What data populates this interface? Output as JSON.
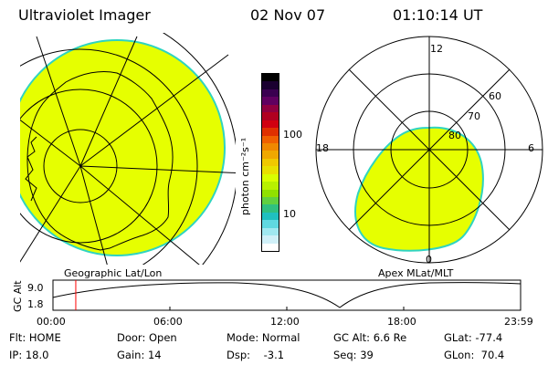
{
  "header": {
    "instrument": "Ultraviolet Imager",
    "date": "02 Nov 07",
    "time": "01:10:14 UT"
  },
  "left_panel": {
    "label": "Geographic Lat/Lon",
    "fill_color": "#e6ff00",
    "limb_color": "#2fd4c0"
  },
  "colorbar": {
    "label": "photon cm⁻²s⁻¹",
    "tick_top": "100",
    "tick_bottom": "10",
    "colors": [
      "#000000",
      "#1a0030",
      "#3a0050",
      "#600060",
      "#900040",
      "#b00020",
      "#d00010",
      "#e03000",
      "#f06000",
      "#f08800",
      "#f0a800",
      "#f0c800",
      "#e8e000",
      "#d8ff00",
      "#b8f000",
      "#90e000",
      "#60d040",
      "#30c080",
      "#20c0c0",
      "#60d8e0",
      "#a0e8f0",
      "#d0f0f8",
      "#ffffff"
    ]
  },
  "right_panel": {
    "label": "Apex MLat/MLT",
    "mlt_top": "12",
    "mlt_left": "18",
    "mlt_right": "6",
    "mlt_bottom": "0",
    "lat_60": "60",
    "lat_70": "70",
    "lat_80": "80",
    "fill_color": "#e6ff00",
    "edge_color": "#2fd4c0"
  },
  "altitude_plot": {
    "ylabel": "GC Alt",
    "ytick_top": "9.0",
    "ytick_bottom": "1.8",
    "xticks": [
      "00:00",
      "06:00",
      "12:00",
      "18:00",
      "23:59"
    ],
    "marker_time_hours": 1.17,
    "marker_color": "#ff0000"
  },
  "status": {
    "flt": "Flt: HOME",
    "ip": "IP: 18.0",
    "door": "Door: Open",
    "gain": "Gain: 14",
    "mode": "Mode: Normal",
    "dsp": "Dsp:    -3.1",
    "gc_alt": "GC Alt: 6.6 Re",
    "seq": "Seq: 39",
    "glat": "GLat: -77.4",
    "glon": "GLon:  70.4"
  }
}
